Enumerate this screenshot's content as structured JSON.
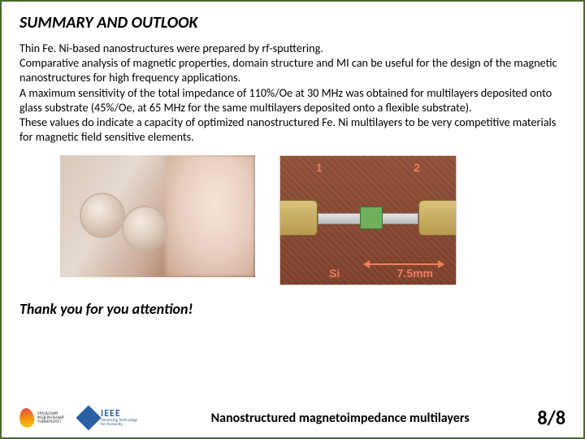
{
  "title": "SUMMARY AND OUTLOOK",
  "body_text": "Thin Fe. Ni-based nanostructures were prepared by rf-sputtering.\nComparative analysis of magnetic properties, domain structure and MI can be useful for the design of the magnetic nanostructures for high frequency applications.\n A maximum sensitivity of the total impedance of 110%/Oe at 30 MHz was obtained for multilayers deposited onto glass substrate (45%/Oe, at 65 MHz for the same multilayers deposited onto a flexible substrate).\n These values do indicate a capacity of optimized nanostructured Fe. Ni multilayers to be very competitive materials for magnetic field sensitive elements.",
  "thanks": "Thank you for you attention!",
  "footer": {
    "title": "Nanostructured magnetoimpedance multilayers",
    "page": "8/8",
    "ural_text": "УРАЛЬСКИЙ\nФЕДЕРАЛЬНЫЙ\nУНИВЕРСИТЕТ",
    "ieee_main": "IEEE",
    "ieee_sub1": "Advancing Technology",
    "ieee_sub2": "for Humanity"
  },
  "photo_right": {
    "n1": "1",
    "n2": "2",
    "si": "Si",
    "mm": "7.5mm"
  },
  "colors": {
    "slide_border": "#4a6a2a",
    "ieee_blue": "#2b5fa4",
    "label_orange": "#f08060",
    "pcb_brown": "#8a4a33"
  },
  "fontsizes": {
    "title": 20,
    "body": 14.2,
    "thanks": 18,
    "footer_title": 16,
    "pager": 24
  }
}
